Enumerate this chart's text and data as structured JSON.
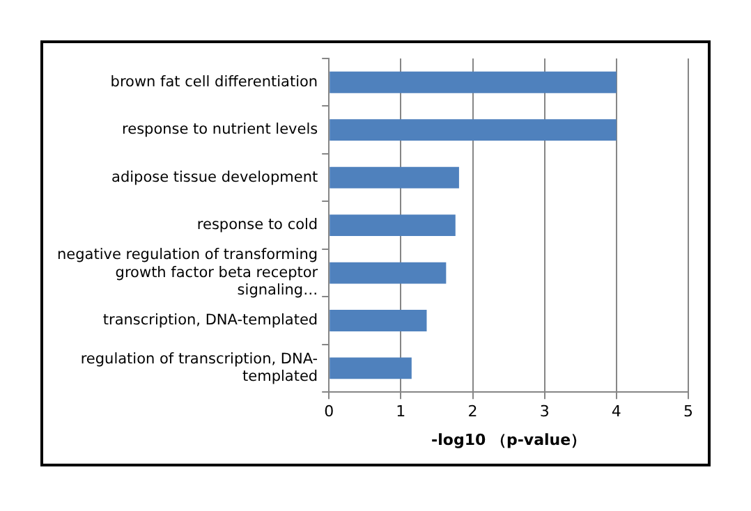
{
  "chart_data": {
    "type": "bar",
    "orientation": "horizontal",
    "xlabel": "-log10 （p-value）",
    "categories": [
      "brown fat cell differentiation",
      "response to nutrient levels",
      "adipose tissue development",
      "response to cold",
      "negative regulation of transforming growth factor beta receptor signaling…",
      "transcription, DNA-templated",
      "regulation of transcription, DNA-templated"
    ],
    "values": [
      4.0,
      4.0,
      1.81,
      1.76,
      1.63,
      1.36,
      1.15
    ],
    "color": "#4f81bd",
    "xlim": [
      0,
      5
    ],
    "xticks": [
      0,
      1,
      2,
      3,
      4,
      5
    ],
    "grid": "x",
    "legend": false
  }
}
